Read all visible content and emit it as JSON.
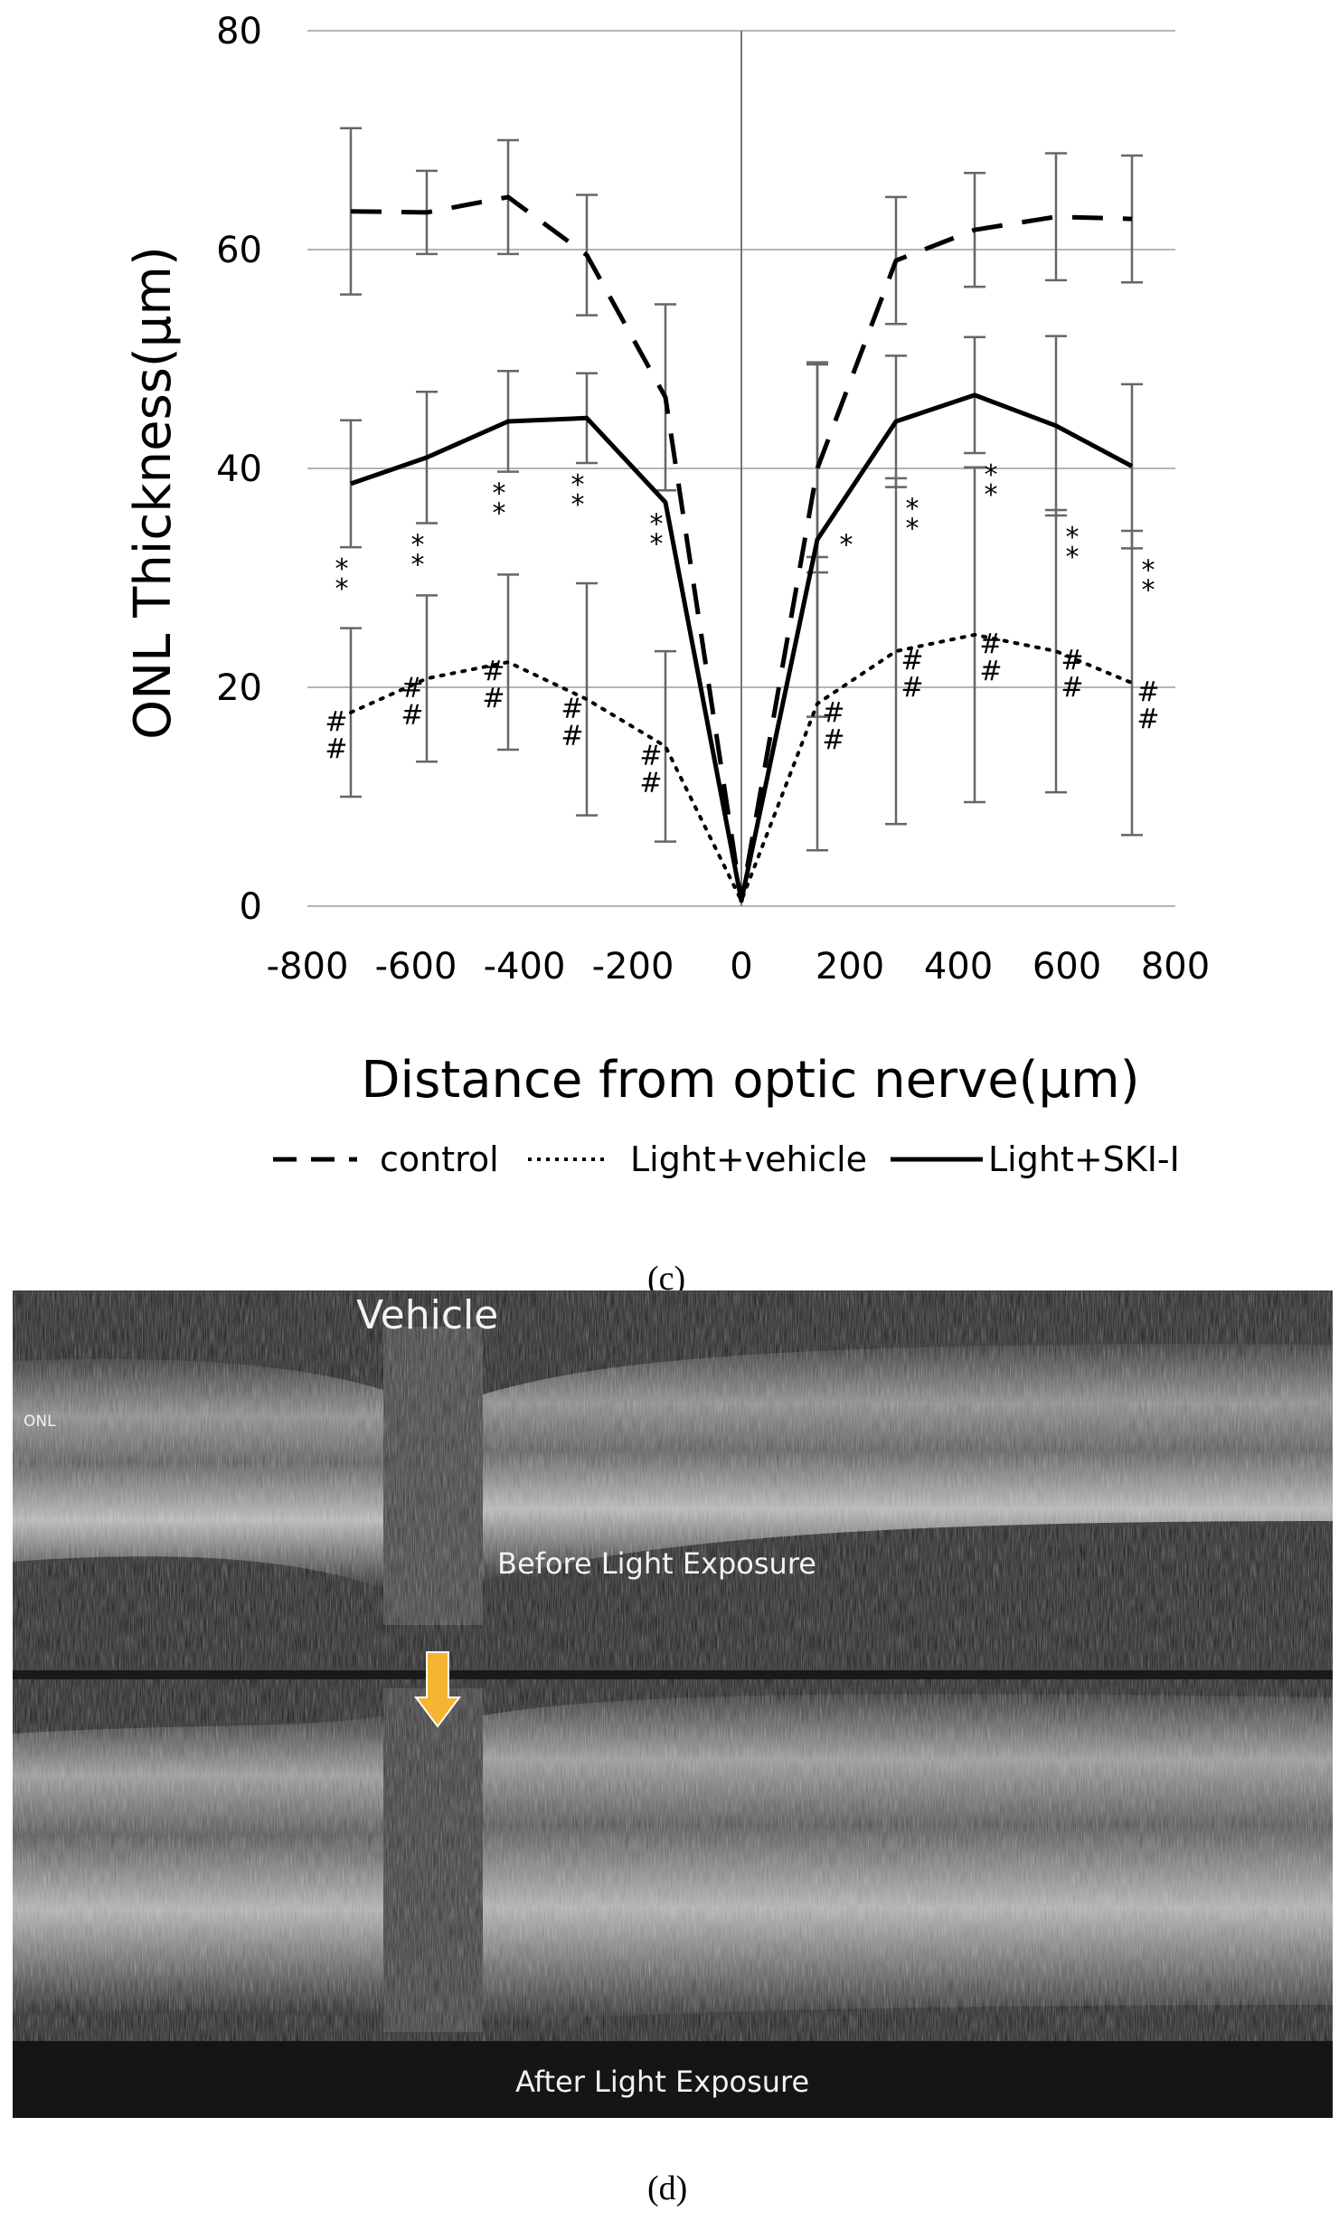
{
  "chart_data": {
    "type": "line",
    "xlabel": "Distance from optic nerve(μm)",
    "ylabel": "ONL Thickness(μm)",
    "xlim": [
      -800,
      800
    ],
    "ylim": [
      0,
      80
    ],
    "x_ticks": [
      "-800",
      "-600",
      "-400",
      "-200",
      "0",
      "200",
      "400",
      "600",
      "800"
    ],
    "y_ticks": [
      "0",
      "20",
      "40",
      "60",
      "80"
    ],
    "grid": "horizontal",
    "legend_position": "bottom",
    "series": [
      {
        "name": "control",
        "style": "dashed",
        "x": [
          -720,
          -580,
          -430,
          -285,
          -140,
          0,
          140,
          285,
          430,
          580,
          720
        ],
        "y": [
          63.5,
          63.4,
          64.8,
          59.5,
          46.5,
          0.5,
          40.0,
          59.0,
          61.8,
          63.0,
          62.8
        ],
        "err": [
          7.6,
          3.8,
          5.2,
          5.5,
          8.5,
          0,
          9.5,
          5.8,
          5.2,
          5.8,
          5.8
        ]
      },
      {
        "name": "Light+vehicle",
        "style": "dotted",
        "x": [
          -720,
          -580,
          -430,
          -285,
          -140,
          0,
          140,
          285,
          430,
          580,
          720
        ],
        "y": [
          17.7,
          20.8,
          22.3,
          18.9,
          14.6,
          0.5,
          18.5,
          23.3,
          24.8,
          23.3,
          20.4
        ],
        "err": [
          7.7,
          7.6,
          8.0,
          10.6,
          8.7,
          0,
          13.4,
          15.8,
          15.3,
          12.9,
          13.9
        ]
      },
      {
        "name": "Light+SKI-I",
        "style": "solid",
        "x": [
          -720,
          -580,
          -430,
          -285,
          -140,
          0,
          140,
          285,
          430,
          580,
          720
        ],
        "y": [
          38.6,
          41.0,
          44.3,
          44.6,
          36.9,
          0.5,
          33.5,
          44.3,
          46.7,
          43.9,
          40.2
        ],
        "err": [
          5.8,
          6.0,
          4.6,
          4.1,
          0,
          0,
          16.2,
          6.0,
          5.3,
          8.2,
          7.5
        ]
      }
    ],
    "annotations": {
      "star_double": [
        -720,
        -580,
        -430,
        -285,
        -140,
        285,
        430,
        580,
        720
      ],
      "star_single": [
        140
      ],
      "hash_double": [
        -720,
        -580,
        -430,
        -285,
        -140,
        140,
        285,
        430,
        580,
        720
      ],
      "star_text": "*",
      "hash_text": "#"
    }
  },
  "panel_c": {
    "label": "(c)"
  },
  "panel_d": {
    "label": "(d)",
    "title": "Vehicle",
    "layer_label": "ONL",
    "before_label": "Before Light Exposure",
    "after_label": "After Light Exposure",
    "arrow_color": "#f5b431"
  }
}
